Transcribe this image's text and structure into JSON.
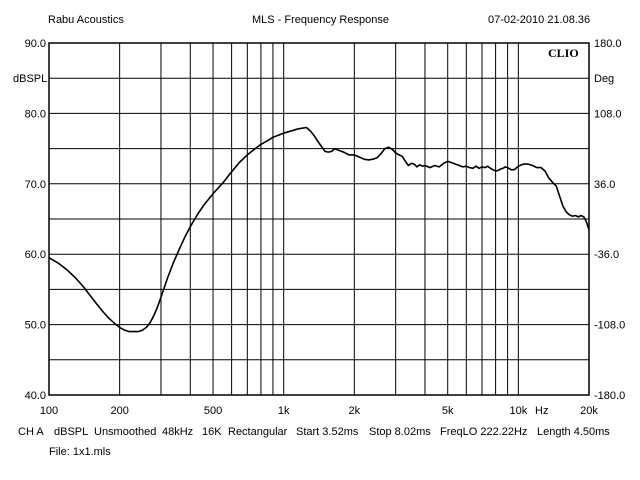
{
  "header": {
    "left": "Rabu Acoustics",
    "center": "MLS - Frequency Response",
    "right": "07-02-2010 21.08.36"
  },
  "logo_text": "CLIO",
  "footer": {
    "channel": "CH A",
    "unit": "dBSPL",
    "smoothing": "Unsmoothed",
    "sample_rate": "48kHz",
    "size": "16K",
    "window": "Rectangular",
    "start": "Start 3.52ms",
    "stop": "Stop 8.02ms",
    "freqlo": "FreqLO 222.22Hz",
    "length": "Length 4.50ms",
    "file": "File: 1x1.mls"
  },
  "chart_data": {
    "type": "line",
    "title": "MLS - Frequency Response",
    "x_scale": "log",
    "xlim": [
      100,
      20000
    ],
    "ylim": [
      40,
      90
    ],
    "y2lim": [
      -180,
      180
    ],
    "xlabel": "Hz",
    "ylabel": "dBSPL",
    "y2label": "Deg",
    "grid": true,
    "x_ticks": [
      {
        "value": 100,
        "label": "100"
      },
      {
        "value": 200,
        "label": "200"
      },
      {
        "value": 500,
        "label": "500"
      },
      {
        "value": 1000,
        "label": "1k"
      },
      {
        "value": 2000,
        "label": "2k"
      },
      {
        "value": 5000,
        "label": "5k"
      },
      {
        "value": 10000,
        "label": "10k"
      },
      {
        "value": 20000,
        "label": "20k"
      }
    ],
    "x_unit_label": "Hz",
    "x_minor_grid": [
      300,
      400,
      600,
      700,
      800,
      900,
      3000,
      4000,
      6000,
      7000,
      8000,
      9000
    ],
    "y_ticks": [
      {
        "value": 90,
        "label": "90.0"
      },
      {
        "value": 80,
        "label": "80.0"
      },
      {
        "value": 70,
        "label": "70.0"
      },
      {
        "value": 60,
        "label": "60.0"
      },
      {
        "value": 50,
        "label": "50.0"
      },
      {
        "value": 40,
        "label": "40.0"
      }
    ],
    "y_minor_grid": [
      85,
      75,
      65,
      55,
      45
    ],
    "y2_ticks": [
      {
        "value": 180,
        "label": "180.0"
      },
      {
        "value": 108,
        "label": "108.0"
      },
      {
        "value": 36,
        "label": "36.0"
      },
      {
        "value": -36,
        "label": "-36.0"
      },
      {
        "value": -108,
        "label": "-108.0"
      },
      {
        "value": -180,
        "label": "-180.0"
      }
    ],
    "series": [
      {
        "values_x": [
          100,
          110,
          120,
          130,
          140,
          150,
          160,
          170,
          180,
          190,
          200,
          210,
          220,
          230,
          240,
          250,
          260,
          270,
          280,
          290,
          300,
          320,
          340,
          360,
          380,
          400,
          430,
          460,
          500,
          550,
          600,
          650,
          700,
          750,
          800,
          850,
          900,
          950,
          1000,
          1050,
          1100,
          1150,
          1200,
          1250,
          1300,
          1350,
          1400,
          1450,
          1500,
          1550,
          1600,
          1650,
          1700,
          1800,
          1900,
          2000,
          2100,
          2200,
          2300,
          2400,
          2500,
          2600,
          2700,
          2800,
          2900,
          3000,
          3100,
          3200,
          3300,
          3400,
          3500,
          3600,
          3700,
          3800,
          3900,
          4000,
          4200,
          4400,
          4600,
          4800,
          5000,
          5200,
          5400,
          5600,
          5800,
          6000,
          6200,
          6400,
          6600,
          6800,
          7000,
          7200,
          7400,
          7600,
          7800,
          8000,
          8200,
          8400,
          8600,
          8800,
          9000,
          9300,
          9600,
          10000,
          10500,
          11000,
          11500,
          12000,
          12500,
          13000,
          13500,
          14000,
          14500,
          15000,
          15500,
          16000,
          16500,
          17000,
          17500,
          18000,
          18500,
          19000,
          19500,
          20000
        ],
        "values_y": [
          59.5,
          58.7,
          57.7,
          56.6,
          55.4,
          54.1,
          52.9,
          51.8,
          50.9,
          50.2,
          49.6,
          49.2,
          49.0,
          49.0,
          49.0,
          49.2,
          49.6,
          50.3,
          51.3,
          52.5,
          53.9,
          56.6,
          58.9,
          60.8,
          62.5,
          63.9,
          65.7,
          67.1,
          68.6,
          70.1,
          71.7,
          73.1,
          74.1,
          74.9,
          75.6,
          76.1,
          76.6,
          76.9,
          77.2,
          77.4,
          77.6,
          77.8,
          77.9,
          78.0,
          77.5,
          76.8,
          76.0,
          75.3,
          74.6,
          74.5,
          74.6,
          75.0,
          74.8,
          74.5,
          74.1,
          74.1,
          73.8,
          73.5,
          73.4,
          73.5,
          73.7,
          74.3,
          75.0,
          75.2,
          74.9,
          74.4,
          74.1,
          73.9,
          73.2,
          72.6,
          72.9,
          72.8,
          72.4,
          72.7,
          72.5,
          72.6,
          72.3,
          72.6,
          72.4,
          72.9,
          73.2,
          73.0,
          72.8,
          72.6,
          72.4,
          72.5,
          72.3,
          72.2,
          72.5,
          72.2,
          72.4,
          72.3,
          72.5,
          72.2,
          72.0,
          71.8,
          71.9,
          72.1,
          72.2,
          72.4,
          72.3,
          72.0,
          72.0,
          72.5,
          72.8,
          72.8,
          72.6,
          72.3,
          72.3,
          71.8,
          70.8,
          70.2,
          69.7,
          68.2,
          66.8,
          66.0,
          65.6,
          65.4,
          65.5,
          65.3,
          65.5,
          65.3,
          64.6,
          63.5
        ]
      }
    ]
  }
}
